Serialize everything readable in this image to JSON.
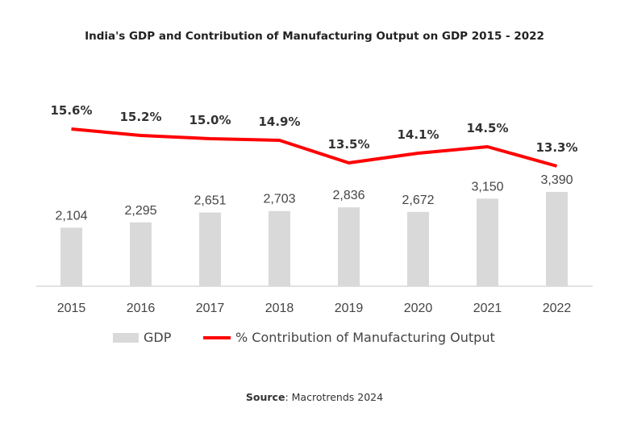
{
  "chart_data": {
    "type": "bar+line",
    "title": "India's GDP and Contribution of Manufacturing Output on GDP 2015 - 2022",
    "categories": [
      "2015",
      "2016",
      "2017",
      "2018",
      "2019",
      "2020",
      "2021",
      "2022"
    ],
    "series": [
      {
        "name": "GDP",
        "type": "bar",
        "color": "#d9d9d9",
        "values": [
          2104,
          2295,
          2651,
          2703,
          2836,
          2672,
          3150,
          3390
        ],
        "labels": [
          "2,104",
          "2,295",
          "2,651",
          "2,703",
          "2,836",
          "2,672",
          "3,150",
          "3,390"
        ]
      },
      {
        "name": "% Contribution of Manufacturing Output",
        "type": "line",
        "color": "#ff0000",
        "values": [
          15.6,
          15.2,
          15.0,
          14.9,
          13.5,
          14.1,
          14.5,
          13.3
        ],
        "labels": [
          "15.6%",
          "15.2%",
          "15.0%",
          "14.9%",
          "13.5%",
          "14.1%",
          "14.5%",
          "13.3%"
        ]
      }
    ],
    "legend": "bottom",
    "grid": false
  },
  "source": {
    "label": "Source",
    "text": ": Macrotrends 2024"
  }
}
